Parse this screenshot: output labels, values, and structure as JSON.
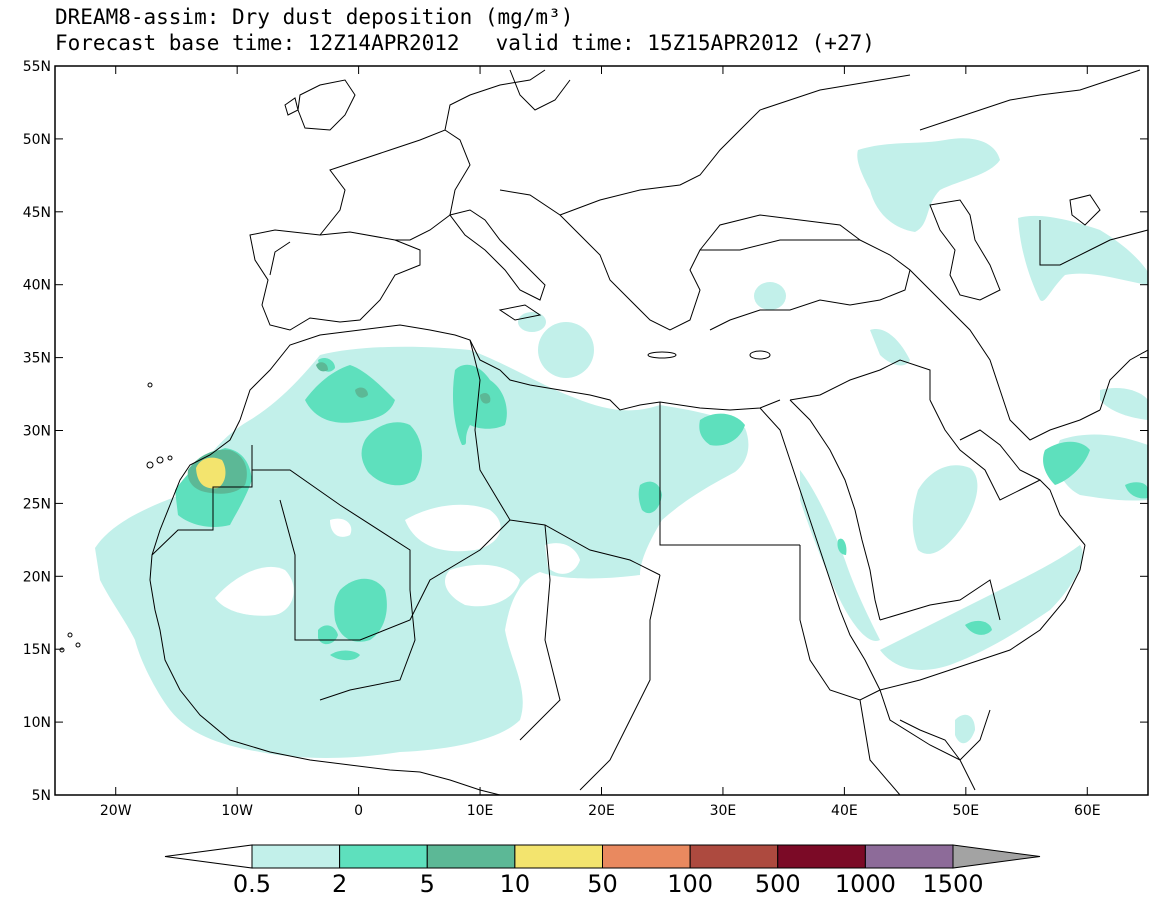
{
  "title": {
    "line1": "DREAM8-assim: Dry dust deposition (mg/m³)",
    "base_time": "Forecast base time: 12Z14APR2012",
    "valid_time": "valid time: 15Z15APR2012 (+27)"
  },
  "map": {
    "lat_labels": [
      "55N",
      "50N",
      "45N",
      "40N",
      "35N",
      "30N",
      "25N",
      "20N",
      "15N",
      "10N",
      "5N"
    ],
    "lon_labels": [
      "20W",
      "10W",
      "0",
      "10E",
      "20E",
      "30E",
      "40E",
      "50E",
      "60E"
    ],
    "extent": {
      "lon_min": -25,
      "lon_max": 65,
      "lat_min": 5,
      "lat_max": 55
    }
  },
  "colorbar": {
    "labels": [
      "0.5",
      "2",
      "5",
      "10",
      "50",
      "100",
      "500",
      "1000",
      "1500"
    ],
    "colors": [
      "#ffffff",
      "#c2f0ea",
      "#5ee0bd",
      "#5cb896",
      "#f3e46e",
      "#e9895f",
      "#ad4a3f",
      "#7b0a26",
      "#8d6b99",
      "#a3a3a3"
    ]
  },
  "legend_colors": {
    "lightest": "#c2f0ea",
    "light": "#5ee0bd",
    "medium": "#5cb896",
    "yellow": "#f3e46e"
  }
}
